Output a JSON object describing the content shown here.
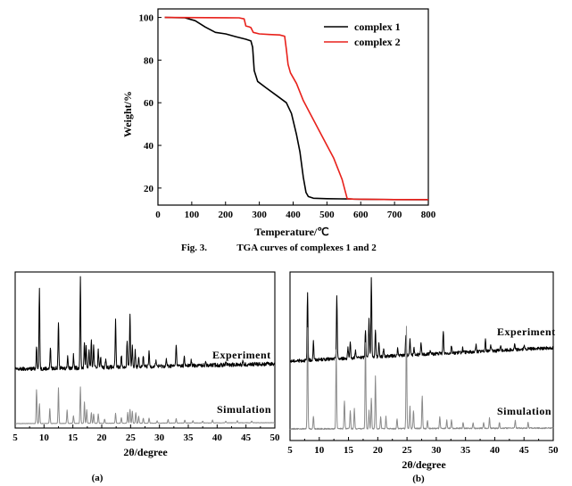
{
  "fig3": {
    "caption_number": "Fig. 3.",
    "caption_text": "TGA curves of complexes 1 and 2"
  },
  "fig_a": {
    "label": "(a)"
  },
  "fig_b": {
    "label": "(b)"
  },
  "chart_data": [
    {
      "type": "line",
      "title": "",
      "xlabel": "Temperature/℃",
      "ylabel": "Weight/%",
      "xlim": [
        0,
        800
      ],
      "ylim": [
        12,
        104
      ],
      "xticks": [
        0,
        100,
        200,
        300,
        400,
        500,
        600,
        700,
        800
      ],
      "yticks": [
        20,
        40,
        60,
        80,
        100
      ],
      "grid": false,
      "legend_position": "top-right",
      "series": [
        {
          "name": "complex 1",
          "color": "#000000",
          "points": [
            [
              20,
              100
            ],
            [
              80,
              99.8
            ],
            [
              110,
              98.5
            ],
            [
              140,
              95.5
            ],
            [
              170,
              93
            ],
            [
              200,
              92.3
            ],
            [
              230,
              91
            ],
            [
              260,
              89.8
            ],
            [
              275,
              89
            ],
            [
              280,
              86
            ],
            [
              285,
              75
            ],
            [
              295,
              70
            ],
            [
              320,
              67
            ],
            [
              350,
              63.5
            ],
            [
              380,
              60
            ],
            [
              395,
              55
            ],
            [
              410,
              45
            ],
            [
              420,
              37
            ],
            [
              430,
              25
            ],
            [
              438,
              18
            ],
            [
              445,
              16
            ],
            [
              460,
              15.2
            ],
            [
              500,
              15
            ],
            [
              560,
              14.9
            ],
            [
              600,
              14.7
            ],
            [
              700,
              14.6
            ],
            [
              800,
              14.5
            ]
          ]
        },
        {
          "name": "complex 2",
          "color": "#e8211b",
          "points": [
            [
              20,
              100
            ],
            [
              240,
              99.8
            ],
            [
              255,
              99.3
            ],
            [
              260,
              96
            ],
            [
              270,
              95.6
            ],
            [
              275,
              95.2
            ],
            [
              282,
              93
            ],
            [
              300,
              92.3
            ],
            [
              330,
              92
            ],
            [
              360,
              91.8
            ],
            [
              375,
              91.2
            ],
            [
              380,
              85
            ],
            [
              385,
              78
            ],
            [
              392,
              74
            ],
            [
              410,
              69
            ],
            [
              430,
              61
            ],
            [
              460,
              52
            ],
            [
              490,
              43
            ],
            [
              520,
              34
            ],
            [
              545,
              24
            ],
            [
              555,
              18
            ],
            [
              560,
              15
            ],
            [
              580,
              14.8
            ],
            [
              700,
              14.6
            ],
            [
              800,
              14.6
            ]
          ]
        }
      ]
    },
    {
      "type": "line",
      "title": "",
      "xlabel": "2θ/degree",
      "xlim": [
        5,
        50
      ],
      "xticks": [
        5,
        10,
        15,
        20,
        25,
        30,
        35,
        40,
        45,
        50
      ],
      "grid": false,
      "series": [
        {
          "name": "Experiment",
          "color": "#000000",
          "peaks": [
            [
              8.7,
              0.3
            ],
            [
              9.2,
              1.0
            ],
            [
              11.1,
              0.27
            ],
            [
              12.5,
              0.6
            ],
            [
              14.1,
              0.16
            ],
            [
              15.1,
              0.16
            ],
            [
              16.3,
              1.15
            ],
            [
              17.0,
              0.33
            ],
            [
              17.3,
              0.28
            ],
            [
              17.8,
              0.24
            ],
            [
              18.2,
              0.33
            ],
            [
              18.6,
              0.28
            ],
            [
              19.4,
              0.24
            ],
            [
              19.8,
              0.14
            ],
            [
              20.7,
              0.12
            ],
            [
              22.4,
              0.6
            ],
            [
              23.4,
              0.16
            ],
            [
              24.4,
              0.33
            ],
            [
              24.9,
              0.68
            ],
            [
              25.3,
              0.28
            ],
            [
              25.8,
              0.2
            ],
            [
              26.4,
              0.14
            ],
            [
              27.2,
              0.12
            ],
            [
              28.2,
              0.18
            ],
            [
              29.4,
              0.08
            ],
            [
              31.2,
              0.08
            ],
            [
              32.9,
              0.28
            ],
            [
              34.3,
              0.11
            ],
            [
              35.5,
              0.06
            ],
            [
              38.0,
              0.06
            ],
            [
              41.5,
              0.05
            ],
            [
              44.5,
              0.05
            ]
          ]
        },
        {
          "name": "Simulation",
          "color": "#8a8a8a",
          "peaks": [
            [
              8.7,
              0.95
            ],
            [
              9.2,
              0.55
            ],
            [
              11.0,
              0.42
            ],
            [
              12.5,
              1.0
            ],
            [
              14.0,
              0.38
            ],
            [
              15.1,
              0.22
            ],
            [
              16.3,
              1.02
            ],
            [
              17.0,
              0.6
            ],
            [
              17.4,
              0.38
            ],
            [
              18.2,
              0.3
            ],
            [
              18.6,
              0.26
            ],
            [
              19.4,
              0.26
            ],
            [
              20.5,
              0.12
            ],
            [
              22.4,
              0.28
            ],
            [
              23.4,
              0.16
            ],
            [
              24.5,
              0.3
            ],
            [
              24.9,
              0.38
            ],
            [
              25.3,
              0.34
            ],
            [
              25.9,
              0.3
            ],
            [
              26.4,
              0.2
            ],
            [
              27.2,
              0.14
            ],
            [
              28.2,
              0.14
            ],
            [
              29.6,
              0.06
            ],
            [
              31.5,
              0.1
            ],
            [
              32.9,
              0.12
            ],
            [
              34.4,
              0.08
            ],
            [
              35.8,
              0.06
            ],
            [
              37.5,
              0.05
            ],
            [
              39.2,
              0.08
            ],
            [
              41.5,
              0.05
            ],
            [
              43.5,
              0.06
            ],
            [
              46.0,
              0.05
            ]
          ]
        }
      ]
    },
    {
      "type": "line",
      "title": "",
      "xlabel": "2θ/degree",
      "xlim": [
        5,
        50
      ],
      "xticks": [
        5,
        10,
        15,
        20,
        25,
        30,
        35,
        40,
        45,
        50
      ],
      "grid": false,
      "series": [
        {
          "name": "Experiment",
          "color": "#000000",
          "peaks": [
            [
              8.0,
              1.0
            ],
            [
              9.0,
              0.28
            ],
            [
              13.0,
              0.95
            ],
            [
              14.9,
              0.16
            ],
            [
              15.3,
              0.22
            ],
            [
              16.2,
              0.12
            ],
            [
              17.9,
              0.42
            ],
            [
              18.5,
              0.6
            ],
            [
              18.9,
              1.18
            ],
            [
              19.6,
              0.42
            ],
            [
              20.2,
              0.22
            ],
            [
              21.0,
              0.12
            ],
            [
              23.4,
              0.1
            ],
            [
              24.8,
              0.3
            ],
            [
              25.5,
              0.22
            ],
            [
              26.2,
              0.12
            ],
            [
              27.4,
              0.16
            ],
            [
              29.0,
              0.06
            ],
            [
              31.2,
              0.32
            ],
            [
              32.6,
              0.12
            ],
            [
              34.5,
              0.06
            ],
            [
              36.8,
              0.1
            ],
            [
              38.4,
              0.18
            ],
            [
              39.3,
              0.1
            ],
            [
              41.0,
              0.06
            ],
            [
              43.4,
              0.08
            ],
            [
              45.0,
              0.05
            ]
          ]
        },
        {
          "name": "Simulation",
          "color": "#8a8a8a",
          "peaks": [
            [
              8.0,
              1.0
            ],
            [
              9.0,
              0.12
            ],
            [
              12.9,
              0.78
            ],
            [
              14.3,
              0.28
            ],
            [
              15.3,
              0.18
            ],
            [
              16.0,
              0.2
            ],
            [
              17.9,
              0.85
            ],
            [
              18.5,
              0.18
            ],
            [
              18.9,
              0.3
            ],
            [
              19.6,
              0.52
            ],
            [
              20.5,
              0.12
            ],
            [
              21.4,
              0.12
            ],
            [
              23.3,
              0.1
            ],
            [
              24.9,
              1.02
            ],
            [
              25.5,
              0.22
            ],
            [
              26.1,
              0.18
            ],
            [
              27.6,
              0.32
            ],
            [
              28.5,
              0.08
            ],
            [
              30.6,
              0.12
            ],
            [
              31.8,
              0.08
            ],
            [
              32.6,
              0.08
            ],
            [
              34.6,
              0.06
            ],
            [
              36.3,
              0.06
            ],
            [
              38.1,
              0.06
            ],
            [
              39.1,
              0.1
            ],
            [
              40.8,
              0.06
            ],
            [
              43.5,
              0.08
            ],
            [
              45.7,
              0.06
            ]
          ]
        }
      ]
    }
  ]
}
